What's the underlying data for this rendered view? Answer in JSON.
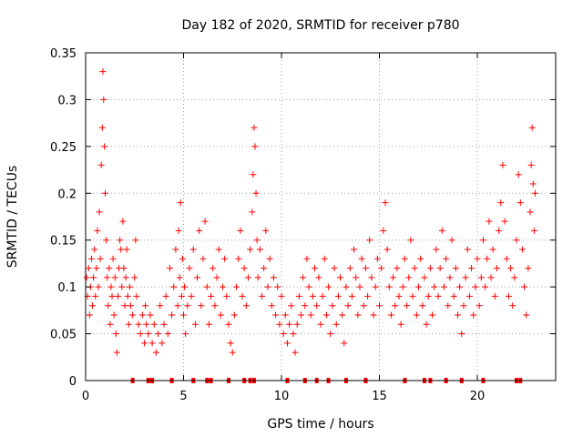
{
  "chart_data": {
    "type": "scatter",
    "title": "Day 182 of 2020, SRMTID for receiver p780",
    "xlabel": "GPS time / hours",
    "ylabel": "SRMTID / TECUs",
    "xlim": [
      0,
      24
    ],
    "ylim": [
      0,
      0.35
    ],
    "xticks": [
      0,
      5,
      10,
      15,
      20
    ],
    "xtick_labels": [
      "0",
      "5",
      "10",
      "15",
      "20"
    ],
    "yticks": [
      0,
      0.05,
      0.1,
      0.15,
      0.2,
      0.25,
      0.3,
      0.35
    ],
    "ytick_labels": [
      "0",
      "0.05",
      "0.1",
      "0.15",
      "0.2",
      "0.25",
      "0.3",
      "0.35"
    ],
    "grid": true,
    "marker": "plus",
    "color": "#ff0000",
    "zero_points_x": [
      2.4,
      3.2,
      3.4,
      4.4,
      5.5,
      6.2,
      6.4,
      7.3,
      8.1,
      8.4,
      8.6,
      10.3,
      11.2,
      11.8,
      12.4,
      13.3,
      14.3,
      16.3,
      17.3,
      17.6,
      18.4,
      19.2,
      20.3,
      22.0,
      22.2
    ],
    "series": [
      {
        "name": "SRMTID",
        "points": [
          [
            0.05,
            0.11
          ],
          [
            0.1,
            0.09
          ],
          [
            0.15,
            0.12
          ],
          [
            0.2,
            0.07
          ],
          [
            0.25,
            0.1
          ],
          [
            0.3,
            0.13
          ],
          [
            0.35,
            0.08
          ],
          [
            0.4,
            0.11
          ],
          [
            0.45,
            0.14
          ],
          [
            0.5,
            0.09
          ],
          [
            0.55,
            0.12
          ],
          [
            0.6,
            0.16
          ],
          [
            0.65,
            0.1
          ],
          [
            0.7,
            0.18
          ],
          [
            0.75,
            0.13
          ],
          [
            0.8,
            0.23
          ],
          [
            0.85,
            0.27
          ],
          [
            0.88,
            0.33
          ],
          [
            0.92,
            0.3
          ],
          [
            0.96,
            0.25
          ],
          [
            1.0,
            0.2
          ],
          [
            1.05,
            0.15
          ],
          [
            1.1,
            0.11
          ],
          [
            1.15,
            0.08
          ],
          [
            1.2,
            0.12
          ],
          [
            1.25,
            0.06
          ],
          [
            1.3,
            0.1
          ],
          [
            1.35,
            0.09
          ],
          [
            1.4,
            0.13
          ],
          [
            1.45,
            0.07
          ],
          [
            1.5,
            0.11
          ],
          [
            1.55,
            0.05
          ],
          [
            1.6,
            0.03
          ],
          [
            1.65,
            0.09
          ],
          [
            1.7,
            0.12
          ],
          [
            1.75,
            0.15
          ],
          [
            1.8,
            0.14
          ],
          [
            1.85,
            0.1
          ],
          [
            1.9,
            0.17
          ],
          [
            1.95,
            0.12
          ],
          [
            2.0,
            0.08
          ],
          [
            2.05,
            0.11
          ],
          [
            2.1,
            0.14
          ],
          [
            2.15,
            0.09
          ],
          [
            2.2,
            0.06
          ],
          [
            2.25,
            0.1
          ],
          [
            2.3,
            0.08
          ],
          [
            2.4,
            0.07
          ],
          [
            2.5,
            0.11
          ],
          [
            2.55,
            0.15
          ],
          [
            2.6,
            0.09
          ],
          [
            2.7,
            0.06
          ],
          [
            2.8,
            0.05
          ],
          [
            2.9,
            0.07
          ],
          [
            3.0,
            0.04
          ],
          [
            3.05,
            0.08
          ],
          [
            3.1,
            0.06
          ],
          [
            3.2,
            0.05
          ],
          [
            3.3,
            0.07
          ],
          [
            3.4,
            0.04
          ],
          [
            3.5,
            0.06
          ],
          [
            3.6,
            0.03
          ],
          [
            3.7,
            0.05
          ],
          [
            3.8,
            0.08
          ],
          [
            3.9,
            0.04
          ],
          [
            4.0,
            0.06
          ],
          [
            4.1,
            0.09
          ],
          [
            4.2,
            0.05
          ],
          [
            4.3,
            0.12
          ],
          [
            4.4,
            0.07
          ],
          [
            4.5,
            0.1
          ],
          [
            4.6,
            0.14
          ],
          [
            4.7,
            0.08
          ],
          [
            4.75,
            0.16
          ],
          [
            4.8,
            0.11
          ],
          [
            4.85,
            0.19
          ],
          [
            4.9,
            0.09
          ],
          [
            4.95,
            0.13
          ],
          [
            5.0,
            0.07
          ],
          [
            5.05,
            0.1
          ],
          [
            5.1,
            0.05
          ],
          [
            5.2,
            0.08
          ],
          [
            5.3,
            0.12
          ],
          [
            5.4,
            0.09
          ],
          [
            5.5,
            0.14
          ],
          [
            5.6,
            0.06
          ],
          [
            5.7,
            0.11
          ],
          [
            5.8,
            0.16
          ],
          [
            5.9,
            0.08
          ],
          [
            6.0,
            0.13
          ],
          [
            6.1,
            0.17
          ],
          [
            6.2,
            0.1
          ],
          [
            6.3,
            0.06
          ],
          [
            6.4,
            0.09
          ],
          [
            6.5,
            0.12
          ],
          [
            6.6,
            0.08
          ],
          [
            6.7,
            0.11
          ],
          [
            6.8,
            0.14
          ],
          [
            6.9,
            0.07
          ],
          [
            7.0,
            0.1
          ],
          [
            7.1,
            0.13
          ],
          [
            7.2,
            0.09
          ],
          [
            7.3,
            0.06
          ],
          [
            7.4,
            0.04
          ],
          [
            7.5,
            0.03
          ],
          [
            7.6,
            0.07
          ],
          [
            7.7,
            0.1
          ],
          [
            7.8,
            0.13
          ],
          [
            7.9,
            0.16
          ],
          [
            8.0,
            0.09
          ],
          [
            8.1,
            0.12
          ],
          [
            8.2,
            0.08
          ],
          [
            8.3,
            0.11
          ],
          [
            8.4,
            0.14
          ],
          [
            8.5,
            0.18
          ],
          [
            8.55,
            0.22
          ],
          [
            8.6,
            0.27
          ],
          [
            8.65,
            0.25
          ],
          [
            8.7,
            0.2
          ],
          [
            8.75,
            0.15
          ],
          [
            8.8,
            0.11
          ],
          [
            8.9,
            0.14
          ],
          [
            9.0,
            0.09
          ],
          [
            9.1,
            0.12
          ],
          [
            9.2,
            0.16
          ],
          [
            9.3,
            0.1
          ],
          [
            9.4,
            0.13
          ],
          [
            9.5,
            0.08
          ],
          [
            9.6,
            0.11
          ],
          [
            9.7,
            0.07
          ],
          [
            9.8,
            0.1
          ],
          [
            9.9,
            0.06
          ],
          [
            10.0,
            0.09
          ],
          [
            10.1,
            0.05
          ],
          [
            10.2,
            0.07
          ],
          [
            10.3,
            0.04
          ],
          [
            10.4,
            0.06
          ],
          [
            10.5,
            0.08
          ],
          [
            10.6,
            0.05
          ],
          [
            10.7,
            0.03
          ],
          [
            10.8,
            0.06
          ],
          [
            10.9,
            0.09
          ],
          [
            11.0,
            0.07
          ],
          [
            11.1,
            0.11
          ],
          [
            11.2,
            0.08
          ],
          [
            11.3,
            0.13
          ],
          [
            11.4,
            0.1
          ],
          [
            11.5,
            0.07
          ],
          [
            11.6,
            0.09
          ],
          [
            11.7,
            0.12
          ],
          [
            11.8,
            0.08
          ],
          [
            11.9,
            0.11
          ],
          [
            12.0,
            0.06
          ],
          [
            12.1,
            0.09
          ],
          [
            12.2,
            0.13
          ],
          [
            12.3,
            0.07
          ],
          [
            12.4,
            0.1
          ],
          [
            12.5,
            0.05
          ],
          [
            12.6,
            0.08
          ],
          [
            12.7,
            0.12
          ],
          [
            12.8,
            0.06
          ],
          [
            12.9,
            0.09
          ],
          [
            13.0,
            0.11
          ],
          [
            13.1,
            0.07
          ],
          [
            13.2,
            0.04
          ],
          [
            13.3,
            0.1
          ],
          [
            13.4,
            0.08
          ],
          [
            13.5,
            0.12
          ],
          [
            13.6,
            0.09
          ],
          [
            13.7,
            0.14
          ],
          [
            13.8,
            0.11
          ],
          [
            13.9,
            0.07
          ],
          [
            14.0,
            0.1
          ],
          [
            14.1,
            0.13
          ],
          [
            14.2,
            0.08
          ],
          [
            14.3,
            0.12
          ],
          [
            14.4,
            0.09
          ],
          [
            14.5,
            0.15
          ],
          [
            14.6,
            0.11
          ],
          [
            14.7,
            0.07
          ],
          [
            14.8,
            0.1
          ],
          [
            14.9,
            0.13
          ],
          [
            15.0,
            0.08
          ],
          [
            15.1,
            0.12
          ],
          [
            15.2,
            0.16
          ],
          [
            15.3,
            0.19
          ],
          [
            15.4,
            0.14
          ],
          [
            15.5,
            0.1
          ],
          [
            15.6,
            0.07
          ],
          [
            15.7,
            0.11
          ],
          [
            15.8,
            0.08
          ],
          [
            15.9,
            0.12
          ],
          [
            16.0,
            0.09
          ],
          [
            16.1,
            0.06
          ],
          [
            16.2,
            0.1
          ],
          [
            16.3,
            0.13
          ],
          [
            16.4,
            0.08
          ],
          [
            16.5,
            0.11
          ],
          [
            16.6,
            0.15
          ],
          [
            16.7,
            0.09
          ],
          [
            16.8,
            0.12
          ],
          [
            16.9,
            0.07
          ],
          [
            17.0,
            0.1
          ],
          [
            17.1,
            0.13
          ],
          [
            17.2,
            0.08
          ],
          [
            17.3,
            0.11
          ],
          [
            17.4,
            0.06
          ],
          [
            17.5,
            0.09
          ],
          [
            17.6,
            0.12
          ],
          [
            17.7,
            0.07
          ],
          [
            17.8,
            0.1
          ],
          [
            17.9,
            0.14
          ],
          [
            18.0,
            0.09
          ],
          [
            18.1,
            0.12
          ],
          [
            18.2,
            0.16
          ],
          [
            18.3,
            0.1
          ],
          [
            18.4,
            0.13
          ],
          [
            18.5,
            0.08
          ],
          [
            18.6,
            0.11
          ],
          [
            18.7,
            0.15
          ],
          [
            18.8,
            0.09
          ],
          [
            18.9,
            0.12
          ],
          [
            19.0,
            0.07
          ],
          [
            19.1,
            0.1
          ],
          [
            19.2,
            0.05
          ],
          [
            19.3,
            0.08
          ],
          [
            19.4,
            0.11
          ],
          [
            19.5,
            0.14
          ],
          [
            19.6,
            0.09
          ],
          [
            19.7,
            0.12
          ],
          [
            19.8,
            0.07
          ],
          [
            19.9,
            0.1
          ],
          [
            20.0,
            0.13
          ],
          [
            20.1,
            0.08
          ],
          [
            20.2,
            0.11
          ],
          [
            20.3,
            0.15
          ],
          [
            20.4,
            0.1
          ],
          [
            20.5,
            0.13
          ],
          [
            20.6,
            0.17
          ],
          [
            20.7,
            0.11
          ],
          [
            20.8,
            0.14
          ],
          [
            20.9,
            0.09
          ],
          [
            21.0,
            0.12
          ],
          [
            21.1,
            0.16
          ],
          [
            21.2,
            0.19
          ],
          [
            21.3,
            0.23
          ],
          [
            21.4,
            0.17
          ],
          [
            21.5,
            0.13
          ],
          [
            21.6,
            0.09
          ],
          [
            21.7,
            0.12
          ],
          [
            21.8,
            0.08
          ],
          [
            21.9,
            0.11
          ],
          [
            22.0,
            0.15
          ],
          [
            22.1,
            0.22
          ],
          [
            22.2,
            0.19
          ],
          [
            22.3,
            0.14
          ],
          [
            22.4,
            0.1
          ],
          [
            22.5,
            0.07
          ],
          [
            22.6,
            0.12
          ],
          [
            22.7,
            0.18
          ],
          [
            22.75,
            0.23
          ],
          [
            22.8,
            0.27
          ],
          [
            22.85,
            0.21
          ],
          [
            22.9,
            0.16
          ],
          [
            22.95,
            0.2
          ]
        ]
      }
    ]
  }
}
